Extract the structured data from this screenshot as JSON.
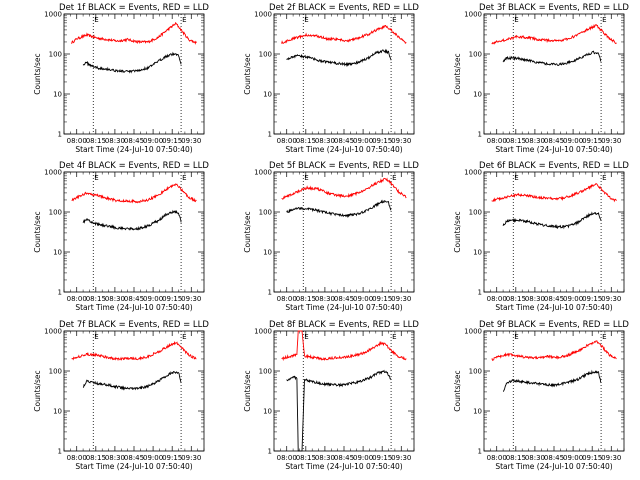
{
  "chart_data": [
    {
      "type": "line",
      "title": "Det 1f BLACK = Events, RED = LLD",
      "xlabel": "Start Time (24-Jul-10 07:50:40)",
      "ylabel": "Counts/sec",
      "yscale": "log",
      "ylim": [
        1,
        1000
      ],
      "xticks": [
        "08:00",
        "08:15",
        "08:30",
        "08:45",
        "09:00",
        "09:15",
        "09:30"
      ],
      "yticks": [
        "1",
        "10",
        "100",
        "1000"
      ],
      "markers": [
        "E",
        "E"
      ],
      "vlines_min": [
        13,
        82
      ],
      "series": [
        {
          "color": "#ff0000",
          "x_min": [
            -4,
            0,
            8,
            16,
            24,
            32,
            40,
            48,
            56,
            64,
            72,
            78,
            82,
            88,
            94
          ],
          "y": [
            190,
            240,
            300,
            250,
            230,
            210,
            230,
            200,
            200,
            260,
            420,
            580,
            400,
            230,
            190
          ]
        },
        {
          "color": "#000000",
          "x_min": [
            5,
            8,
            12,
            18,
            24,
            32,
            40,
            48,
            56,
            64,
            70,
            76,
            80,
            82
          ],
          "y": [
            55,
            60,
            50,
            44,
            42,
            38,
            36,
            38,
            45,
            65,
            88,
            100,
            95,
            55
          ]
        }
      ]
    },
    {
      "type": "line",
      "title": "Det 2f BLACK = Events, RED = LLD",
      "xlabel": "Start Time (24-Jul-10 07:50:40)",
      "ylabel": "Counts/sec",
      "yscale": "log",
      "ylim": [
        1,
        1000
      ],
      "xticks": [
        "08:00",
        "08:15",
        "08:30",
        "08:45",
        "09:00",
        "09:15",
        "09:30"
      ],
      "yticks": [
        "1",
        "10",
        "100",
        "1000"
      ],
      "markers": [
        "E",
        "E"
      ],
      "vlines_min": [
        13,
        82
      ],
      "series": [
        {
          "color": "#ff0000",
          "x_min": [
            -4,
            0,
            8,
            16,
            24,
            32,
            40,
            48,
            56,
            64,
            72,
            78,
            82,
            88,
            94
          ],
          "y": [
            190,
            210,
            260,
            300,
            280,
            240,
            230,
            210,
            250,
            310,
            420,
            500,
            400,
            260,
            190
          ]
        },
        {
          "color": "#000000",
          "x_min": [
            0,
            8,
            16,
            24,
            32,
            40,
            48,
            56,
            64,
            70,
            76,
            80,
            82
          ],
          "y": [
            75,
            90,
            85,
            70,
            62,
            58,
            55,
            62,
            80,
            105,
            120,
            110,
            70
          ]
        }
      ]
    },
    {
      "type": "line",
      "title": "Det 3f BLACK = Events, RED = LLD",
      "xlabel": "Start Time (24-Jul-10 07:50:40)",
      "ylabel": "Counts/sec",
      "yscale": "log",
      "ylim": [
        1,
        1000
      ],
      "xticks": [
        "08:00",
        "08:15",
        "08:30",
        "08:45",
        "09:00",
        "09:15",
        "09:30"
      ],
      "yticks": [
        "1",
        "10",
        "100",
        "1000"
      ],
      "markers": [
        "E",
        "E"
      ],
      "vlines_min": [
        13,
        82
      ],
      "series": [
        {
          "color": "#ff0000",
          "x_min": [
            -4,
            0,
            8,
            16,
            24,
            32,
            40,
            48,
            56,
            64,
            72,
            78,
            82,
            88,
            94
          ],
          "y": [
            190,
            200,
            230,
            270,
            260,
            230,
            220,
            210,
            240,
            300,
            420,
            520,
            400,
            250,
            190
          ]
        },
        {
          "color": "#000000",
          "x_min": [
            5,
            8,
            16,
            24,
            32,
            40,
            48,
            56,
            64,
            70,
            76,
            80,
            82
          ],
          "y": [
            65,
            80,
            78,
            70,
            62,
            57,
            55,
            60,
            75,
            95,
            110,
            100,
            65
          ]
        }
      ]
    },
    {
      "type": "line",
      "title": "Det 4f BLACK = Events, RED = LLD",
      "xlabel": "Start Time (24-Jul-10 07:50:40)",
      "ylabel": "Counts/sec",
      "yscale": "log",
      "ylim": [
        1,
        1000
      ],
      "xticks": [
        "08:00",
        "08:15",
        "08:30",
        "08:45",
        "09:00",
        "09:15",
        "09:30"
      ],
      "yticks": [
        "1",
        "10",
        "100",
        "1000"
      ],
      "markers": [
        "E",
        "E"
      ],
      "vlines_min": [
        13,
        82
      ],
      "series": [
        {
          "color": "#ff0000",
          "x_min": [
            -4,
            0,
            8,
            16,
            24,
            32,
            40,
            48,
            56,
            64,
            72,
            78,
            82,
            88,
            94
          ],
          "y": [
            200,
            230,
            300,
            260,
            220,
            190,
            190,
            180,
            200,
            260,
            400,
            500,
            380,
            230,
            190
          ]
        },
        {
          "color": "#000000",
          "x_min": [
            5,
            8,
            12,
            18,
            24,
            32,
            40,
            48,
            56,
            64,
            70,
            76,
            80,
            82
          ],
          "y": [
            55,
            65,
            55,
            48,
            45,
            40,
            38,
            38,
            45,
            60,
            85,
            100,
            95,
            55
          ]
        }
      ]
    },
    {
      "type": "line",
      "title": "Det 5f BLACK = Events, RED = LLD",
      "xlabel": "Start Time (24-Jul-10 07:50:40)",
      "ylabel": "Counts/sec",
      "yscale": "log",
      "ylim": [
        1,
        1000
      ],
      "xticks": [
        "08:00",
        "08:15",
        "08:30",
        "08:45",
        "09:00",
        "09:15",
        "09:30"
      ],
      "yticks": [
        "1",
        "10",
        "100",
        "1000"
      ],
      "markers": [
        "E",
        "E"
      ],
      "vlines_min": [
        13,
        82
      ],
      "series": [
        {
          "color": "#ff0000",
          "x_min": [
            -4,
            0,
            8,
            16,
            24,
            32,
            40,
            48,
            56,
            64,
            72,
            78,
            82,
            88,
            94
          ],
          "y": [
            220,
            240,
            320,
            400,
            380,
            300,
            260,
            250,
            300,
            400,
            560,
            680,
            520,
            320,
            230
          ]
        },
        {
          "color": "#000000",
          "x_min": [
            0,
            8,
            16,
            24,
            32,
            40,
            48,
            56,
            64,
            70,
            76,
            80,
            82
          ],
          "y": [
            100,
            125,
            120,
            110,
            95,
            85,
            82,
            90,
            110,
            150,
            185,
            170,
            110
          ]
        }
      ]
    },
    {
      "type": "line",
      "title": "Det 6f BLACK = Events, RED = LLD",
      "xlabel": "Start Time (24-Jul-10 07:50:40)",
      "ylabel": "Counts/sec",
      "yscale": "log",
      "ylim": [
        1,
        1000
      ],
      "xticks": [
        "08:00",
        "08:15",
        "08:30",
        "08:45",
        "09:00",
        "09:15",
        "09:30"
      ],
      "yticks": [
        "1",
        "10",
        "100",
        "1000"
      ],
      "markers": [
        "E",
        "E"
      ],
      "vlines_min": [
        13,
        82
      ],
      "series": [
        {
          "color": "#ff0000",
          "x_min": [
            -4,
            0,
            8,
            16,
            24,
            32,
            40,
            48,
            56,
            64,
            72,
            78,
            82,
            88,
            94
          ],
          "y": [
            190,
            210,
            240,
            270,
            260,
            230,
            220,
            210,
            240,
            300,
            400,
            500,
            380,
            240,
            190
          ]
        },
        {
          "color": "#000000",
          "x_min": [
            5,
            8,
            16,
            24,
            32,
            40,
            48,
            56,
            64,
            70,
            76,
            80,
            82
          ],
          "y": [
            45,
            60,
            62,
            58,
            50,
            45,
            42,
            44,
            55,
            75,
            95,
            90,
            60
          ]
        }
      ]
    },
    {
      "type": "line",
      "title": "Det 7f BLACK = Events, RED = LLD",
      "xlabel": "Start Time (24-Jul-10 07:50:40)",
      "ylabel": "Counts/sec",
      "yscale": "log",
      "ylim": [
        1,
        1000
      ],
      "xticks": [
        "08:00",
        "08:15",
        "08:30",
        "08:45",
        "09:00",
        "09:15",
        "09:30"
      ],
      "yticks": [
        "1",
        "10",
        "100",
        "1000"
      ],
      "markers": [
        "E",
        "E"
      ],
      "vlines_min": [
        13,
        82
      ],
      "series": [
        {
          "color": "#ff0000",
          "x_min": [
            -4,
            0,
            8,
            16,
            24,
            32,
            40,
            48,
            56,
            64,
            72,
            78,
            82,
            88,
            94
          ],
          "y": [
            200,
            220,
            260,
            250,
            220,
            200,
            210,
            200,
            230,
            300,
            420,
            520,
            400,
            250,
            200
          ]
        },
        {
          "color": "#000000",
          "x_min": [
            5,
            8,
            12,
            18,
            24,
            32,
            40,
            48,
            56,
            64,
            70,
            76,
            80,
            82
          ],
          "y": [
            40,
            55,
            52,
            48,
            45,
            40,
            36,
            36,
            42,
            55,
            75,
            95,
            90,
            50
          ]
        }
      ]
    },
    {
      "type": "line",
      "title": "Det 8f BLACK = Events, RED = LLD",
      "xlabel": "Start Time (24-Jul-10 07:50:40)",
      "ylabel": "Counts/sec",
      "yscale": "log",
      "ylim": [
        1,
        1000
      ],
      "xticks": [
        "08:00",
        "08:15",
        "08:30",
        "08:45",
        "09:00",
        "09:15",
        "09:30"
      ],
      "yticks": [
        "1",
        "10",
        "100",
        "1000"
      ],
      "markers": [
        "E",
        "E"
      ],
      "vlines_min": [
        13,
        82
      ],
      "series": [
        {
          "color": "#ff0000",
          "x_min": [
            -4,
            0,
            8,
            9,
            10,
            11,
            12,
            14,
            20,
            28,
            36,
            44,
            52,
            60,
            68,
            74,
            78,
            82,
            88,
            94
          ],
          "y": [
            200,
            220,
            260,
            1000,
            1000,
            1000,
            1000,
            240,
            220,
            200,
            210,
            220,
            240,
            280,
            380,
            500,
            460,
            320,
            230,
            200
          ]
        },
        {
          "color": "#000000",
          "x_min": [
            0,
            6,
            8,
            9,
            10,
            11,
            12,
            14,
            20,
            28,
            36,
            44,
            52,
            60,
            66,
            72,
            78,
            82
          ],
          "y": [
            60,
            70,
            65,
            1,
            1,
            1,
            1,
            60,
            55,
            48,
            45,
            45,
            50,
            58,
            70,
            90,
            100,
            60
          ]
        }
      ]
    },
    {
      "type": "line",
      "title": "Det 9f BLACK = Events, RED = LLD",
      "xlabel": "Start Time (24-Jul-10 07:50:40)",
      "ylabel": "Counts/sec",
      "yscale": "log",
      "ylim": [
        1,
        1000
      ],
      "xticks": [
        "08:00",
        "08:15",
        "08:30",
        "08:45",
        "09:00",
        "09:15",
        "09:30"
      ],
      "yticks": [
        "1",
        "10",
        "100",
        "1000"
      ],
      "markers": [
        "E",
        "E"
      ],
      "vlines_min": [
        13,
        82
      ],
      "series": [
        {
          "color": "#ff0000",
          "x_min": [
            -4,
            0,
            8,
            16,
            24,
            32,
            40,
            48,
            56,
            64,
            72,
            78,
            82,
            88,
            94
          ],
          "y": [
            190,
            220,
            260,
            240,
            220,
            210,
            230,
            220,
            250,
            320,
            450,
            560,
            430,
            260,
            200
          ]
        },
        {
          "color": "#000000",
          "x_min": [
            5,
            8,
            12,
            18,
            24,
            32,
            40,
            48,
            56,
            64,
            70,
            76,
            80,
            82
          ],
          "y": [
            30,
            50,
            58,
            55,
            52,
            48,
            45,
            45,
            52,
            62,
            80,
            95,
            90,
            50
          ]
        }
      ]
    }
  ]
}
